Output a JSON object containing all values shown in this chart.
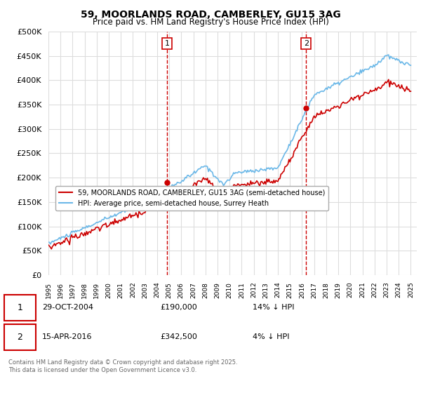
{
  "title": "59, MOORLANDS ROAD, CAMBERLEY, GU15 3AG",
  "subtitle": "Price paid vs. HM Land Registry's House Price Index (HPI)",
  "legend_entry1": "59, MOORLANDS ROAD, CAMBERLEY, GU15 3AG (semi-detached house)",
  "legend_entry2": "HPI: Average price, semi-detached house, Surrey Heath",
  "sale1_date": "29-OCT-2004",
  "sale1_price": 190000,
  "sale1_label": "14% ↓ HPI",
  "sale2_date": "15-APR-2016",
  "sale2_price": 342500,
  "sale2_label": "4% ↓ HPI",
  "note": "Contains HM Land Registry data © Crown copyright and database right 2025.\nThis data is licensed under the Open Government Licence v3.0.",
  "ylim": [
    0,
    500000
  ],
  "yticks": [
    0,
    50000,
    100000,
    150000,
    200000,
    250000,
    300000,
    350000,
    400000,
    450000,
    500000
  ],
  "color_hpi": "#6bb8e8",
  "color_price": "#cc0000",
  "color_vline": "#cc0000",
  "bg_color": "#ffffff",
  "grid_color": "#dddddd"
}
